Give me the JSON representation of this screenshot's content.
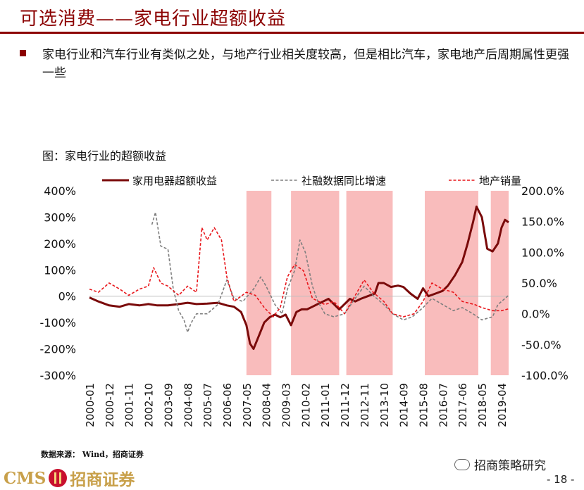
{
  "header": {
    "title": "可选消费——家电行业超额收益"
  },
  "bullet": {
    "text": "家电行业和汽车行业有类似之处，与地产行业相关度较高，但是相比汽车，家电地产后周期属性更强一些"
  },
  "chart_title": "图：家电行业的超额收益",
  "footer": {
    "source": "数据来源： Wind，招商证券",
    "logo_text_left": "CMS",
    "logo_text_right": "招商证券",
    "wechat": "招商策略研究",
    "page": "- 18 -"
  },
  "colors": {
    "brand": "#8b0000",
    "series_main": "#7a0a0a",
    "series_gray": "#7f7f7f",
    "series_red": "#e8161b",
    "shade": "#f9bcbc"
  },
  "chart_data": {
    "type": "line",
    "x_ticks": [
      "2000-01",
      "2000-12",
      "2001-11",
      "2002-10",
      "2003-09",
      "2004-08",
      "2005-07",
      "2006-06",
      "2007-05",
      "2008-04",
      "2009-03",
      "2010-02",
      "2011-01",
      "2011-12",
      "2012-11",
      "2013-10",
      "2014-09",
      "2015-08",
      "2016-07",
      "2017-06",
      "2018-05",
      "2019-04"
    ],
    "left_axis": {
      "ticks": [
        "400%",
        "300%",
        "200%",
        "100%",
        "0%",
        "-100%",
        "-200%",
        "-300%"
      ],
      "range": [
        -300,
        400
      ]
    },
    "right_axis": {
      "ticks": [
        "200.0%",
        "150.0%",
        "100.0%",
        "50.0%",
        "0.0%",
        "-50.0%",
        "-100.0%"
      ],
      "range": [
        -100,
        200
      ]
    },
    "legend": {
      "position": "top",
      "entries": [
        {
          "name": "家用电器超额收益",
          "style": "solid",
          "axis": "left"
        },
        {
          "name": "社融数据同比增速",
          "style": "dashed",
          "axis": "right"
        },
        {
          "name": "地产销量",
          "style": "dashed",
          "axis": "right"
        }
      ]
    },
    "shaded_periods": [
      [
        "2007-05",
        "2008-07"
      ],
      [
        "2009-06",
        "2011-09"
      ],
      [
        "2012-01",
        "2014-03"
      ],
      [
        "2015-09",
        "2018-03"
      ],
      [
        "2018-10",
        "2019-08"
      ]
    ],
    "series": [
      {
        "name": "家用电器超额收益",
        "axis": "left",
        "points": [
          [
            "2000-01",
            -5
          ],
          [
            "2000-06",
            -20
          ],
          [
            "2000-12",
            -35
          ],
          [
            "2001-06",
            -40
          ],
          [
            "2001-11",
            -30
          ],
          [
            "2002-05",
            -35
          ],
          [
            "2002-10",
            -30
          ],
          [
            "2003-03",
            -35
          ],
          [
            "2003-09",
            -35
          ],
          [
            "2004-03",
            -30
          ],
          [
            "2004-08",
            -25
          ],
          [
            "2005-01",
            -30
          ],
          [
            "2005-07",
            -28
          ],
          [
            "2006-01",
            -25
          ],
          [
            "2006-06",
            -35
          ],
          [
            "2006-10",
            -40
          ],
          [
            "2007-02",
            -60
          ],
          [
            "2007-05",
            -110
          ],
          [
            "2007-07",
            -180
          ],
          [
            "2007-09",
            -200
          ],
          [
            "2007-12",
            -150
          ],
          [
            "2008-03",
            -100
          ],
          [
            "2008-06",
            -80
          ],
          [
            "2008-09",
            -70
          ],
          [
            "2008-12",
            -80
          ],
          [
            "2009-03",
            -70
          ],
          [
            "2009-06",
            -110
          ],
          [
            "2009-09",
            -60
          ],
          [
            "2009-12",
            -50
          ],
          [
            "2010-03",
            -50
          ],
          [
            "2010-06",
            -40
          ],
          [
            "2010-09",
            -30
          ],
          [
            "2010-12",
            -20
          ],
          [
            "2011-03",
            -10
          ],
          [
            "2011-06",
            -30
          ],
          [
            "2011-09",
            -50
          ],
          [
            "2011-12",
            -30
          ],
          [
            "2012-03",
            -10
          ],
          [
            "2012-06",
            -20
          ],
          [
            "2012-09",
            -10
          ],
          [
            "2013-01",
            0
          ],
          [
            "2013-05",
            10
          ],
          [
            "2013-07",
            50
          ],
          [
            "2013-10",
            50
          ],
          [
            "2014-02",
            35
          ],
          [
            "2014-06",
            40
          ],
          [
            "2014-09",
            35
          ],
          [
            "2015-01",
            10
          ],
          [
            "2015-05",
            -10
          ],
          [
            "2015-08",
            30
          ],
          [
            "2015-11",
            0
          ],
          [
            "2016-03",
            10
          ],
          [
            "2016-07",
            20
          ],
          [
            "2016-10",
            40
          ],
          [
            "2017-02",
            80
          ],
          [
            "2017-06",
            130
          ],
          [
            "2017-09",
            200
          ],
          [
            "2017-12",
            280
          ],
          [
            "2018-02",
            340
          ],
          [
            "2018-05",
            300
          ],
          [
            "2018-08",
            180
          ],
          [
            "2018-11",
            170
          ],
          [
            "2019-02",
            200
          ],
          [
            "2019-04",
            260
          ],
          [
            "2019-06",
            290
          ],
          [
            "2019-08",
            280
          ]
        ]
      },
      {
        "name": "社融数据同比增速",
        "axis": "right",
        "points": [
          [
            "2002-12",
            145
          ],
          [
            "2003-02",
            165
          ],
          [
            "2003-05",
            110
          ],
          [
            "2003-09",
            105
          ],
          [
            "2003-12",
            40
          ],
          [
            "2004-03",
            5
          ],
          [
            "2004-06",
            -10
          ],
          [
            "2004-08",
            -30
          ],
          [
            "2004-10",
            -15
          ],
          [
            "2005-01",
            0
          ],
          [
            "2005-07",
            0
          ],
          [
            "2006-01",
            15
          ],
          [
            "2006-06",
            55
          ],
          [
            "2006-10",
            25
          ],
          [
            "2007-03",
            20
          ],
          [
            "2007-09",
            40
          ],
          [
            "2008-01",
            60
          ],
          [
            "2008-04",
            45
          ],
          [
            "2008-09",
            15
          ],
          [
            "2009-01",
            0
          ],
          [
            "2009-04",
            40
          ],
          [
            "2009-08",
            70
          ],
          [
            "2009-11",
            120
          ],
          [
            "2010-02",
            100
          ],
          [
            "2010-06",
            45
          ],
          [
            "2010-09",
            20
          ],
          [
            "2011-01",
            0
          ],
          [
            "2011-06",
            -5
          ],
          [
            "2011-12",
            0
          ],
          [
            "2012-06",
            25
          ],
          [
            "2012-11",
            45
          ],
          [
            "2013-04",
            30
          ],
          [
            "2013-10",
            15
          ],
          [
            "2014-03",
            0
          ],
          [
            "2014-09",
            -10
          ],
          [
            "2015-02",
            -5
          ],
          [
            "2015-08",
            10
          ],
          [
            "2016-01",
            25
          ],
          [
            "2016-07",
            15
          ],
          [
            "2017-01",
            5
          ],
          [
            "2017-06",
            10
          ],
          [
            "2017-12",
            0
          ],
          [
            "2018-05",
            -10
          ],
          [
            "2018-11",
            -5
          ],
          [
            "2019-02",
            15
          ],
          [
            "2019-08",
            30
          ]
        ]
      },
      {
        "name": "地产销量",
        "axis": "right",
        "points": [
          [
            "2000-01",
            40
          ],
          [
            "2000-06",
            35
          ],
          [
            "2000-12",
            50
          ],
          [
            "2001-06",
            40
          ],
          [
            "2001-11",
            30
          ],
          [
            "2002-05",
            40
          ],
          [
            "2002-10",
            45
          ],
          [
            "2003-01",
            75
          ],
          [
            "2003-05",
            50
          ],
          [
            "2003-09",
            45
          ],
          [
            "2004-03",
            30
          ],
          [
            "2004-08",
            45
          ],
          [
            "2005-01",
            35
          ],
          [
            "2005-04",
            140
          ],
          [
            "2005-07",
            120
          ],
          [
            "2005-11",
            140
          ],
          [
            "2006-03",
            120
          ],
          [
            "2006-06",
            60
          ],
          [
            "2006-10",
            20
          ],
          [
            "2007-05",
            35
          ],
          [
            "2007-10",
            30
          ],
          [
            "2008-03",
            10
          ],
          [
            "2008-08",
            -5
          ],
          [
            "2008-12",
            10
          ],
          [
            "2009-04",
            60
          ],
          [
            "2009-08",
            80
          ],
          [
            "2010-01",
            70
          ],
          [
            "2010-06",
            25
          ],
          [
            "2011-01",
            15
          ],
          [
            "2011-06",
            20
          ],
          [
            "2011-12",
            0
          ],
          [
            "2012-06",
            30
          ],
          [
            "2012-11",
            55
          ],
          [
            "2013-04",
            35
          ],
          [
            "2013-10",
            20
          ],
          [
            "2014-03",
            0
          ],
          [
            "2014-09",
            -5
          ],
          [
            "2015-03",
            0
          ],
          [
            "2015-08",
            20
          ],
          [
            "2016-01",
            50
          ],
          [
            "2016-07",
            40
          ],
          [
            "2017-01",
            35
          ],
          [
            "2017-06",
            20
          ],
          [
            "2018-01",
            15
          ],
          [
            "2018-05",
            10
          ],
          [
            "2018-11",
            5
          ],
          [
            "2019-04",
            5
          ],
          [
            "2019-08",
            8
          ]
        ]
      }
    ]
  }
}
